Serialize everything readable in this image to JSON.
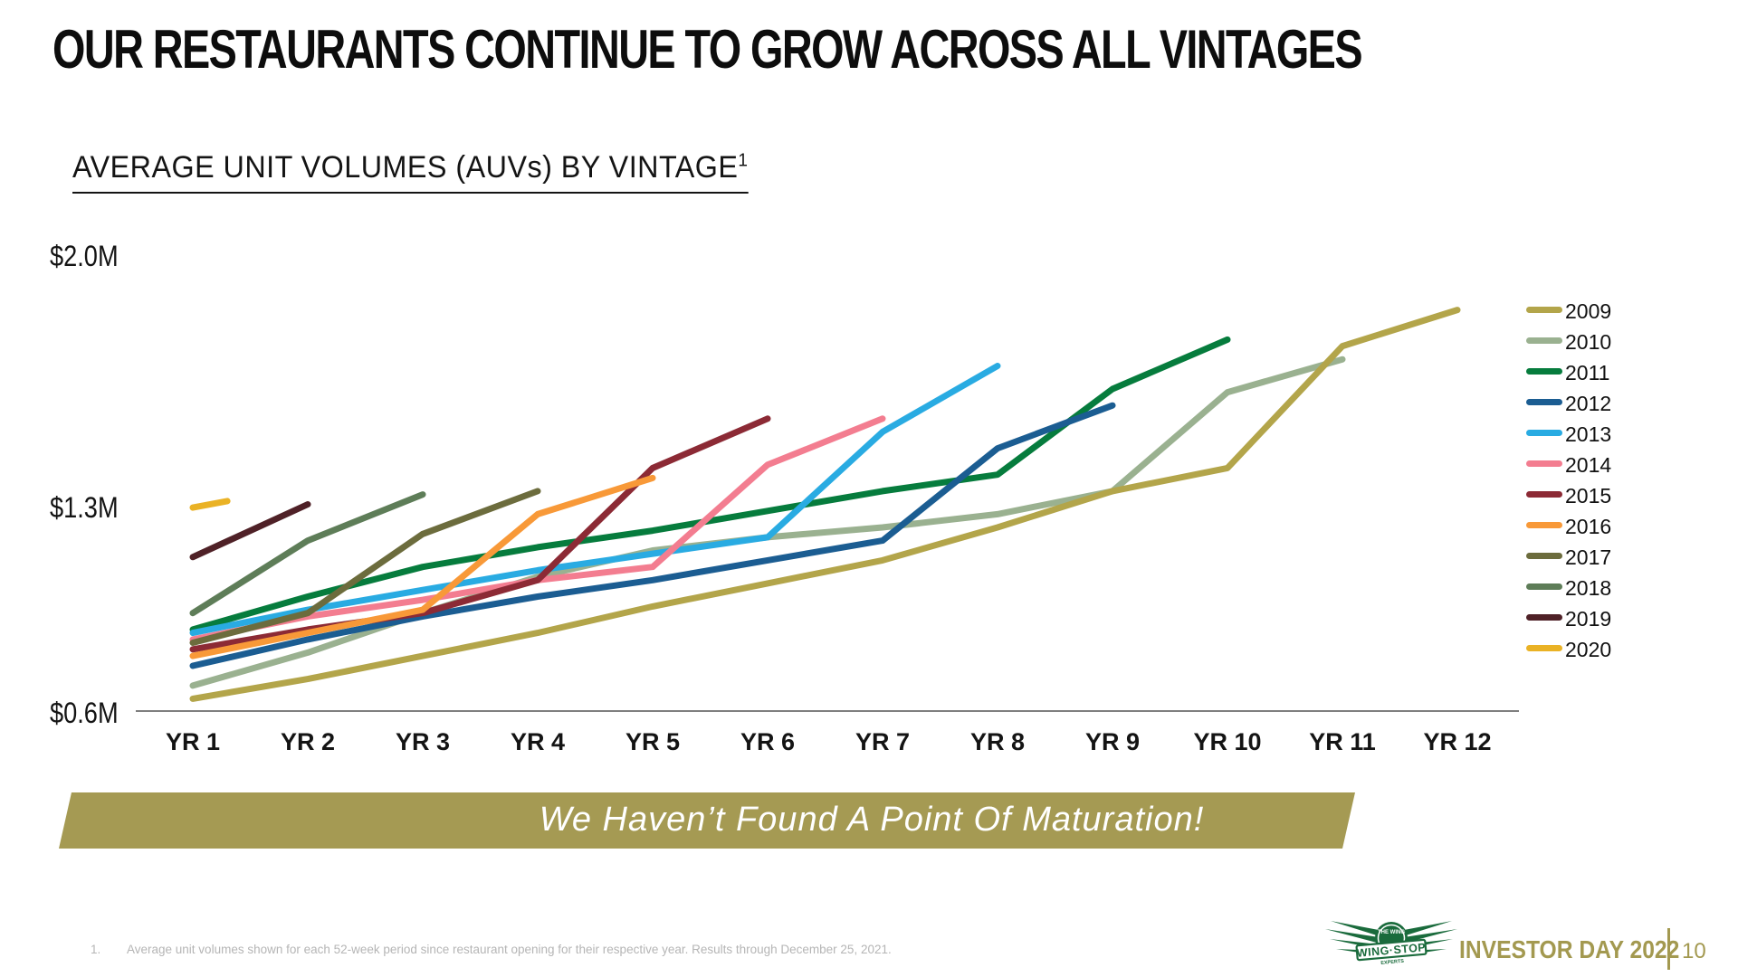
{
  "slide": {
    "title": "OUR RESTAURANTS CONTINUE TO GROW ACROSS ALL VINTAGES",
    "subtitle": "AVERAGE UNIT VOLUMES (AUVs) BY VINTAGE",
    "subtitle_superscript": "1",
    "banner": {
      "text": "We Haven’t Found A Point Of Maturation!",
      "color": "#a59a53"
    },
    "footnote": {
      "number": "1.",
      "text": "Average unit volumes shown for each 52-week period since restaurant opening for their respective year. Results through December 25, 2021."
    },
    "footer": {
      "logo_top_text": "THE WING",
      "brand": "WING·STOP",
      "logo_bottom_text": "EXPERTS",
      "event": "INVESTOR DAY 2022",
      "page_number": "10",
      "accent_color": "#a39950",
      "logo_color": "#1a6b3c"
    }
  },
  "chart_data": {
    "type": "line",
    "title": "AVERAGE UNIT VOLUMES (AUVs) BY VINTAGE",
    "unit": "millions USD",
    "grid": false,
    "legend_position": "right",
    "x_axis": {
      "labels": [
        "YR 1",
        "YR 2",
        "YR 3",
        "YR 4",
        "YR 5",
        "YR 6",
        "YR 7",
        "YR 8",
        "YR 9",
        "YR 10",
        "YR 11",
        "YR 12"
      ]
    },
    "y_axis": {
      "range": [
        0.6,
        2.0
      ],
      "ticks": [
        {
          "label": "$2.0M",
          "value": 2.0
        },
        {
          "label": "$1.3M",
          "value": 1.3
        },
        {
          "label": "$0.6M",
          "value": 0.6
        }
      ]
    },
    "series": [
      {
        "name": "2009",
        "color": "#b3a54a",
        "values": [
          0.64,
          0.7,
          0.77,
          0.84,
          0.92,
          0.99,
          1.06,
          1.16,
          1.27,
          1.34,
          1.71,
          1.82
        ]
      },
      {
        "name": "2010",
        "color": "#9ab190",
        "values": [
          0.68,
          0.78,
          0.9,
          1.01,
          1.09,
          1.13,
          1.16,
          1.2,
          1.27,
          1.57,
          1.67
        ]
      },
      {
        "name": "2011",
        "color": "#067c3d",
        "values": [
          0.85,
          0.95,
          1.04,
          1.1,
          1.15,
          1.21,
          1.27,
          1.32,
          1.58,
          1.73
        ]
      },
      {
        "name": "2012",
        "color": "#1b5d92",
        "values": [
          0.74,
          0.82,
          0.89,
          0.95,
          1.0,
          1.06,
          1.12,
          1.4,
          1.53
        ]
      },
      {
        "name": "2013",
        "color": "#29abe2",
        "values": [
          0.84,
          0.91,
          0.97,
          1.03,
          1.08,
          1.13,
          1.45,
          1.65
        ]
      },
      {
        "name": "2014",
        "color": "#f37d90",
        "values": [
          0.82,
          0.89,
          0.94,
          1.0,
          1.04,
          1.35,
          1.49
        ]
      },
      {
        "name": "2015",
        "color": "#8c2a35",
        "values": [
          0.79,
          0.85,
          0.9,
          1.0,
          1.34,
          1.49
        ]
      },
      {
        "name": "2016",
        "color": "#f89938",
        "values": [
          0.77,
          0.84,
          0.91,
          1.2,
          1.31
        ]
      },
      {
        "name": "2017",
        "color": "#6c6c3d",
        "values": [
          0.81,
          0.9,
          1.14,
          1.27
        ]
      },
      {
        "name": "2018",
        "color": "#5e7d58",
        "values": [
          0.9,
          1.12,
          1.26
        ]
      },
      {
        "name": "2019",
        "color": "#4f2127",
        "values": [
          1.07,
          1.23
        ]
      },
      {
        "name": "2020",
        "color": "#eab225",
        "x": [
          1.0,
          1.3
        ],
        "values": [
          1.22,
          1.24
        ]
      }
    ]
  }
}
